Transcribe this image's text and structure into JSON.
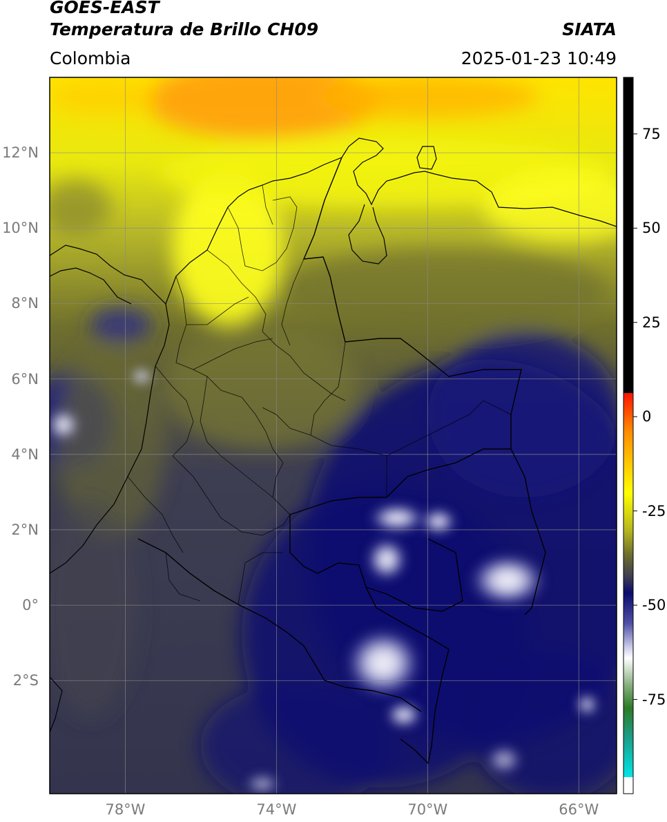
{
  "header": {
    "satellite": "GOES-EAST",
    "product": "Temperatura de Brillo CH09",
    "organization": "SIATA",
    "region": "Colombia",
    "datetime": "2025-01-23 10:49"
  },
  "map": {
    "lon_range": [
      -80,
      -65
    ],
    "lat_range": [
      -5,
      14
    ],
    "lat_ticks": [
      {
        "value": 12,
        "label": "12°N"
      },
      {
        "value": 10,
        "label": "10°N"
      },
      {
        "value": 8,
        "label": "8°N"
      },
      {
        "value": 6,
        "label": "6°N"
      },
      {
        "value": 4,
        "label": "4°N"
      },
      {
        "value": 2,
        "label": "2°N"
      },
      {
        "value": 0,
        "label": "0°"
      },
      {
        "value": -2,
        "label": "2°S"
      }
    ],
    "lon_ticks": [
      {
        "value": -78,
        "label": "78°W"
      },
      {
        "value": -74,
        "label": "74°W"
      },
      {
        "value": -70,
        "label": "70°W"
      },
      {
        "value": -66,
        "label": "66°W"
      }
    ]
  },
  "colorbar": {
    "range": [
      -100,
      90
    ],
    "ticks": [
      {
        "value": 75,
        "label": "75"
      },
      {
        "value": 50,
        "label": "50"
      },
      {
        "value": 25,
        "label": "25"
      },
      {
        "value": 0,
        "label": "0"
      },
      {
        "value": -25,
        "label": "-25"
      },
      {
        "value": -50,
        "label": "-50"
      },
      {
        "value": -75,
        "label": "-75"
      }
    ],
    "colors": {
      "white": "#ffffff",
      "cyan": "#19d6d6",
      "green": "#3a8a2a",
      "navy": "#0c0c6e",
      "slate": "#3c3c52",
      "olive": "#6f6f2e",
      "yellow": "#ffff00",
      "orange": "#ff8c00",
      "red": "#ff0000",
      "black": "#000000"
    }
  }
}
